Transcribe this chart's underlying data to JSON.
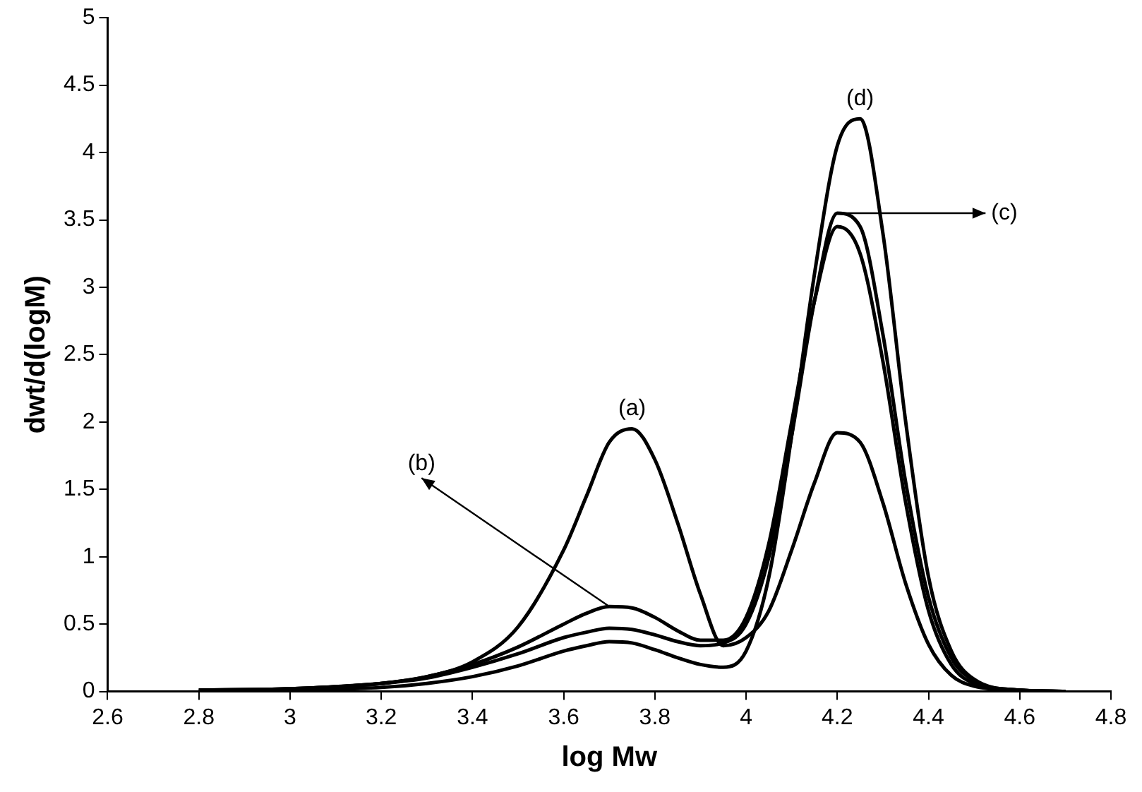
{
  "chart_data": {
    "type": "line",
    "xlabel": "log Mw",
    "ylabel": "dwt/d(logM)",
    "x": [
      2.8,
      3.0,
      3.2,
      3.3,
      3.4,
      3.5,
      3.6,
      3.65,
      3.7,
      3.75,
      3.8,
      3.85,
      3.9,
      3.95,
      4.0,
      4.05,
      4.1,
      4.15,
      4.2,
      4.25,
      4.3,
      4.35,
      4.4,
      4.45,
      4.5,
      4.6,
      4.7
    ],
    "series": [
      {
        "color": "#000000",
        "values": [
          0.01,
          0.02,
          0.06,
          0.11,
          0.22,
          0.48,
          1.05,
          1.45,
          1.85,
          1.95,
          1.72,
          1.25,
          0.72,
          0.34,
          0.4,
          0.6,
          1.05,
          1.55,
          1.92,
          1.85,
          1.4,
          0.8,
          0.35,
          0.12,
          0.04,
          0.01,
          0
        ]
      },
      {
        "color": "#000000",
        "values": [
          0.01,
          0.02,
          0.06,
          0.11,
          0.2,
          0.33,
          0.5,
          0.58,
          0.63,
          0.62,
          0.55,
          0.45,
          0.38,
          0.38,
          0.55,
          1.1,
          2.0,
          2.9,
          3.45,
          3.25,
          2.45,
          1.4,
          0.6,
          0.2,
          0.06,
          0.01,
          0
        ]
      },
      {
        "color": "#000000",
        "values": [
          0.01,
          0.02,
          0.06,
          0.1,
          0.18,
          0.28,
          0.4,
          0.44,
          0.47,
          0.46,
          0.42,
          0.37,
          0.34,
          0.36,
          0.5,
          1.0,
          1.9,
          2.9,
          3.55,
          3.45,
          2.65,
          1.55,
          0.7,
          0.25,
          0.08,
          0.01,
          0
        ]
      },
      {
        "color": "#000000",
        "values": [
          0,
          0.01,
          0.03,
          0.06,
          0.11,
          0.19,
          0.3,
          0.34,
          0.37,
          0.36,
          0.31,
          0.25,
          0.2,
          0.18,
          0.3,
          0.85,
          1.9,
          3.1,
          4.05,
          4.25,
          3.4,
          2.0,
          0.85,
          0.3,
          0.09,
          0.01,
          0
        ]
      }
    ],
    "annotations": [
      {
        "text": "(a)",
        "x": 3.75,
        "y": 1.95
      },
      {
        "text": "(b)",
        "x": 3.7,
        "y": 0.63
      },
      {
        "text": "(c)",
        "x": 4.2,
        "y": 3.55
      },
      {
        "text": "(d)",
        "x": 4.25,
        "y": 4.25
      }
    ],
    "xlim": [
      2.6,
      4.8
    ],
    "xticks": [
      2.6,
      2.8,
      3,
      3.2,
      3.4,
      3.6,
      3.8,
      4,
      4.2,
      4.4,
      4.6,
      4.8
    ],
    "ylim": [
      0,
      5
    ],
    "yticks": [
      0,
      0.5,
      1,
      1.5,
      2,
      2.5,
      3,
      3.5,
      4,
      4.5,
      5
    ],
    "grid": false,
    "legend": false,
    "marker": "none",
    "line_style": "solid"
  }
}
